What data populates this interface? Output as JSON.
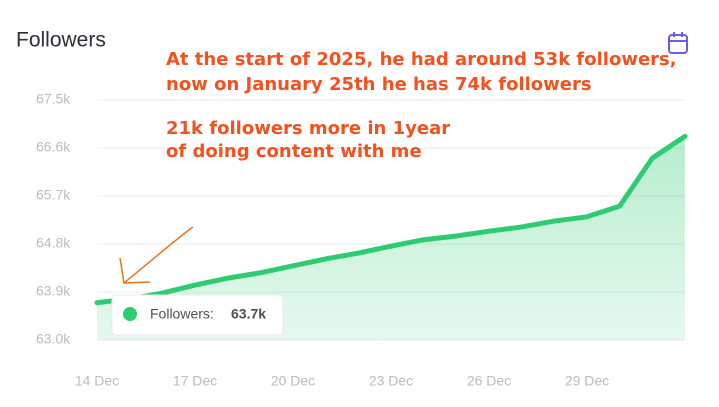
{
  "title": "Followers",
  "annotations": [
    "At the start of 2025, he had around 53k followers,",
    "now on January 25th he has 74k followers",
    "21k followers more in 1year",
    "of doing content with me"
  ],
  "tooltip": {
    "label": "Followers:",
    "value": "63.7k"
  },
  "chart_data": {
    "type": "area",
    "categories": [
      "14 Dec",
      null,
      null,
      "17 Dec",
      null,
      null,
      "20 Dec",
      null,
      null,
      "23 Dec",
      null,
      null,
      "26 Dec",
      null,
      null,
      "29 Dec",
      null,
      null,
      null
    ],
    "series": [
      {
        "name": "Followers",
        "color": "#2ecc71",
        "values": [
          63700,
          63770,
          63880,
          64030,
          64160,
          64260,
          64390,
          64520,
          64630,
          64760,
          64880,
          64950,
          65040,
          65120,
          65230,
          65310,
          65510,
          66410,
          66820
        ]
      }
    ],
    "ylim": [
      63000,
      67500
    ],
    "yticks": [
      {
        "value": 63000,
        "label": "63.0k"
      },
      {
        "value": 63900,
        "label": "63.9k"
      },
      {
        "value": 64800,
        "label": "64.8k"
      },
      {
        "value": 65700,
        "label": "65.7k"
      },
      {
        "value": 66600,
        "label": "66.6k"
      },
      {
        "value": 67500,
        "label": "67.5k"
      }
    ],
    "grid": true
  }
}
